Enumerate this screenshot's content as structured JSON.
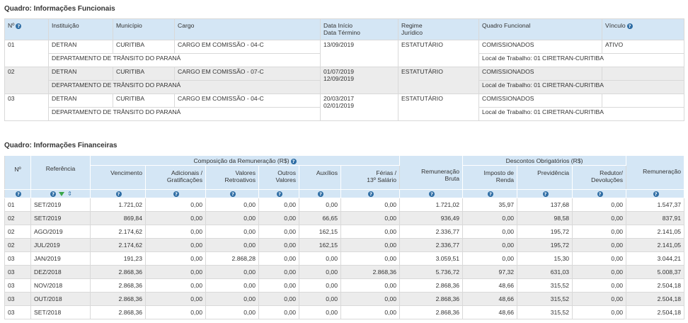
{
  "funcionais": {
    "title": "Quadro: Informações Funcionais",
    "headers": {
      "numero": "Nº",
      "instituicao": "Instituição",
      "municipio": "Município",
      "cargo": "Cargo",
      "data_inicio": "Data Início",
      "data_termino": "Data Término",
      "regime_l1": "Regime",
      "regime_l2": "Jurídico",
      "quadro": "Quadro Funcional",
      "vinculo": "Vínculo"
    },
    "rows": [
      {
        "numero": "01",
        "instituicao": "DETRAN",
        "municipio": "CURITIBA",
        "cargo": "CARGO EM COMISSÃO - 04-C",
        "data1": "13/09/2019",
        "data2": "",
        "regime": "ESTATUTÁRIO",
        "quadro": "COMISSIONADOS",
        "vinculo": "ATIVO",
        "orgao": "DEPARTAMENTO DE TRÂNSITO DO PARANÁ",
        "local": "Local de Trabalho: 01 CIRETRAN-CURITIBA"
      },
      {
        "numero": "02",
        "instituicao": "DETRAN",
        "municipio": "CURITIBA",
        "cargo": "CARGO EM COMISSÃO - 07-C",
        "data1": "01/07/2019",
        "data2": "12/09/2019",
        "regime": "ESTATUTÁRIO",
        "quadro": "COMISSIONADOS",
        "vinculo": "",
        "orgao": "DEPARTAMENTO DE TRÂNSITO DO PARANÁ",
        "local": "Local de Trabalho: 01 CIRETRAN-CURITIBA"
      },
      {
        "numero": "03",
        "instituicao": "DETRAN",
        "municipio": "CURITIBA",
        "cargo": "CARGO EM COMISSÃO - 04-C",
        "data1": "20/03/2017",
        "data2": "02/01/2019",
        "regime": "ESTATUTÁRIO",
        "quadro": "COMISSIONADOS",
        "vinculo": "",
        "orgao": "DEPARTAMENTO DE TRÂNSITO DO PARANÁ",
        "local": "Local de Trabalho: 01 CIRETRAN-CURITIBA"
      }
    ]
  },
  "financeiras": {
    "title": "Quadro: Informações Financeiras",
    "group_composicao": "Composição da Remuneração (R$)",
    "group_descontos": "Descontos Obrigatórios (R$)",
    "headers": {
      "numero": "Nº",
      "referencia": "Referência",
      "vencimento": "Vencimento",
      "adicionais_l1": "Adicionais /",
      "adicionais_l2": "Gratificações",
      "retroativos_l1": "Valores",
      "retroativos_l2": "Retroativos",
      "outros_l1": "Outros",
      "outros_l2": "Valores",
      "auxilios": "Auxílios",
      "ferias_l1": "Férias /",
      "ferias_l2": "13º Salário",
      "bruta_l1": "Remuneração",
      "bruta_l2": "Bruta",
      "imposto_l1": "Imposto de",
      "imposto_l2": "Renda",
      "previdencia": "Previdência",
      "redutor_l1": "Redutor/",
      "redutor_l2": "Devoluções",
      "remuneracao": "Remuneração"
    },
    "rows": [
      [
        "01",
        "SET/2019",
        "1.721,02",
        "0,00",
        "0,00",
        "0,00",
        "0,00",
        "0,00",
        "1.721,02",
        "35,97",
        "137,68",
        "0,00",
        "1.547,37"
      ],
      [
        "02",
        "SET/2019",
        "869,84",
        "0,00",
        "0,00",
        "0,00",
        "66,65",
        "0,00",
        "936,49",
        "0,00",
        "98,58",
        "0,00",
        "837,91"
      ],
      [
        "02",
        "AGO/2019",
        "2.174,62",
        "0,00",
        "0,00",
        "0,00",
        "162,15",
        "0,00",
        "2.336,77",
        "0,00",
        "195,72",
        "0,00",
        "2.141,05"
      ],
      [
        "02",
        "JUL/2019",
        "2.174,62",
        "0,00",
        "0,00",
        "0,00",
        "162,15",
        "0,00",
        "2.336,77",
        "0,00",
        "195,72",
        "0,00",
        "2.141,05"
      ],
      [
        "03",
        "JAN/2019",
        "191,23",
        "0,00",
        "2.868,28",
        "0,00",
        "0,00",
        "0,00",
        "3.059,51",
        "0,00",
        "15,30",
        "0,00",
        "3.044,21"
      ],
      [
        "03",
        "DEZ/2018",
        "2.868,36",
        "0,00",
        "0,00",
        "0,00",
        "0,00",
        "2.868,36",
        "5.736,72",
        "97,32",
        "631,03",
        "0,00",
        "5.008,37"
      ],
      [
        "03",
        "NOV/2018",
        "2.868,36",
        "0,00",
        "0,00",
        "0,00",
        "0,00",
        "0,00",
        "2.868,36",
        "48,66",
        "315,52",
        "0,00",
        "2.504,18"
      ],
      [
        "03",
        "OUT/2018",
        "2.868,36",
        "0,00",
        "0,00",
        "0,00",
        "0,00",
        "0,00",
        "2.868,36",
        "48,66",
        "315,52",
        "0,00",
        "2.504,18"
      ],
      [
        "03",
        "SET/2018",
        "2.868,36",
        "0,00",
        "0,00",
        "0,00",
        "0,00",
        "0,00",
        "2.868,36",
        "48,66",
        "315,52",
        "0,00",
        "2.504,18"
      ]
    ]
  },
  "icons": {
    "help": "question-circle-icon",
    "filter": "filter-icon",
    "sort": "sort-icon"
  },
  "colors": {
    "header_bg": "#d4e6f5",
    "row_gray": "#ececec",
    "icon_blue": "#2e6da4",
    "filter_green": "#3aa64a"
  }
}
